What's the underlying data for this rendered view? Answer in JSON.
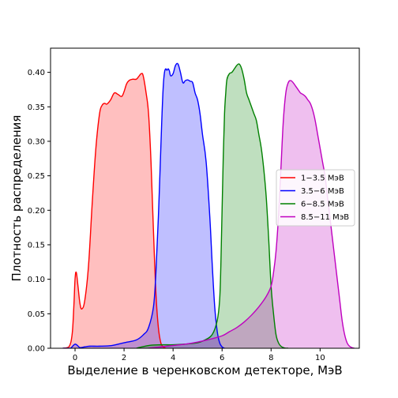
{
  "chart_data": {
    "type": "area",
    "xlabel": "Выделение в черенковском детекторе, МэВ",
    "ylabel": "Плотность распределения",
    "xlim": [
      -1.0,
      11.6
    ],
    "ylim": [
      0,
      0.435
    ],
    "xticks": [
      0,
      2,
      4,
      6,
      8,
      10
    ],
    "yticks": [
      0.0,
      0.05,
      0.1,
      0.15,
      0.2,
      0.25,
      0.3,
      0.35,
      0.4
    ],
    "ytick_labels": [
      "0.00",
      "0.05",
      "0.10",
      "0.15",
      "0.20",
      "0.25",
      "0.30",
      "0.35",
      "0.40"
    ],
    "grid": false,
    "legend_position": "center-right",
    "series": [
      {
        "name": "1−3.5 МэВ",
        "color": "#ff0000",
        "fill": "#ff0000",
        "x": [
          -0.5,
          -0.25,
          -0.12,
          -0.05,
          0,
          0.05,
          0.12,
          0.2,
          0.28,
          0.4,
          0.55,
          0.7,
          0.85,
          1.0,
          1.1,
          1.2,
          1.3,
          1.45,
          1.6,
          1.75,
          1.9,
          2.0,
          2.1,
          2.2,
          2.35,
          2.5,
          2.6,
          2.7,
          2.78,
          2.9,
          3.0,
          3.1,
          3.2,
          3.3,
          3.4,
          3.5,
          3.6,
          3.7
        ],
        "y": [
          0,
          0.002,
          0.02,
          0.06,
          0.1,
          0.11,
          0.09,
          0.065,
          0.057,
          0.07,
          0.12,
          0.21,
          0.29,
          0.34,
          0.352,
          0.355,
          0.354,
          0.36,
          0.37,
          0.368,
          0.365,
          0.372,
          0.383,
          0.388,
          0.39,
          0.39,
          0.394,
          0.398,
          0.395,
          0.37,
          0.34,
          0.27,
          0.17,
          0.08,
          0.03,
          0.008,
          0.002,
          0
        ]
      },
      {
        "name": "3.5−6 МэВ",
        "color": "#0000ff",
        "fill": "#0000ff",
        "x": [
          -0.5,
          -0.2,
          -0.1,
          0,
          0.1,
          0.2,
          0.4,
          0.6,
          1.0,
          1.5,
          2.0,
          2.5,
          2.8,
          3.0,
          3.2,
          3.3,
          3.4,
          3.5,
          3.55,
          3.6,
          3.65,
          3.7,
          3.75,
          3.8,
          3.85,
          3.9,
          4.0,
          4.1,
          4.2,
          4.3,
          4.4,
          4.5,
          4.6,
          4.7,
          4.8,
          4.9,
          5.0,
          5.1,
          5.2,
          5.35,
          5.5,
          5.6,
          5.7,
          5.8,
          5.9,
          6.0,
          6.1
        ],
        "y": [
          0,
          0.0,
          0.003,
          0.006,
          0.004,
          0.001,
          0.002,
          0.003,
          0.003,
          0.004,
          0.008,
          0.012,
          0.02,
          0.03,
          0.06,
          0.11,
          0.19,
          0.29,
          0.34,
          0.38,
          0.4,
          0.405,
          0.403,
          0.405,
          0.402,
          0.395,
          0.398,
          0.41,
          0.412,
          0.4,
          0.385,
          0.388,
          0.389,
          0.387,
          0.385,
          0.37,
          0.36,
          0.34,
          0.31,
          0.27,
          0.19,
          0.12,
          0.06,
          0.025,
          0.008,
          0.002,
          0
        ]
      },
      {
        "name": "6−8.5 МэВ",
        "color": "#008000",
        "fill": "#008000",
        "x": [
          2.5,
          3.0,
          3.5,
          4.0,
          4.5,
          5.0,
          5.3,
          5.6,
          5.8,
          5.9,
          5.95,
          6.0,
          6.05,
          6.1,
          6.15,
          6.2,
          6.3,
          6.4,
          6.5,
          6.6,
          6.7,
          6.8,
          6.9,
          7.0,
          7.1,
          7.2,
          7.3,
          7.4,
          7.5,
          7.6,
          7.7,
          7.8,
          7.9,
          8.0,
          8.1,
          8.2,
          8.3,
          8.4,
          8.5,
          8.6,
          8.7
        ],
        "y": [
          0,
          0.004,
          0.005,
          0.005,
          0.006,
          0.008,
          0.012,
          0.02,
          0.04,
          0.07,
          0.12,
          0.2,
          0.28,
          0.34,
          0.37,
          0.39,
          0.398,
          0.4,
          0.405,
          0.41,
          0.412,
          0.405,
          0.39,
          0.37,
          0.36,
          0.35,
          0.34,
          0.33,
          0.31,
          0.29,
          0.26,
          0.22,
          0.16,
          0.09,
          0.05,
          0.02,
          0.008,
          0.003,
          0.001,
          0.0,
          0
        ]
      },
      {
        "name": "8.5−11 МэВ",
        "color": "#bf00bf",
        "fill": "#bf00bf",
        "x": [
          3.0,
          3.5,
          4.0,
          4.5,
          5.0,
          5.5,
          6.0,
          6.3,
          6.6,
          6.9,
          7.2,
          7.5,
          7.8,
          8.0,
          8.1,
          8.2,
          8.3,
          8.4,
          8.5,
          8.6,
          8.7,
          8.8,
          8.9,
          9.0,
          9.1,
          9.2,
          9.3,
          9.4,
          9.5,
          9.6,
          9.7,
          9.8,
          9.9,
          10.0,
          10.1,
          10.2,
          10.3,
          10.4,
          10.5,
          10.6,
          10.7,
          10.8,
          10.9,
          11.0,
          11.1,
          11.2,
          11.3,
          11.4
        ],
        "y": [
          0,
          0.002,
          0.004,
          0.006,
          0.009,
          0.013,
          0.018,
          0.024,
          0.03,
          0.038,
          0.048,
          0.06,
          0.075,
          0.09,
          0.11,
          0.14,
          0.19,
          0.26,
          0.33,
          0.37,
          0.385,
          0.388,
          0.385,
          0.38,
          0.375,
          0.37,
          0.368,
          0.365,
          0.36,
          0.355,
          0.345,
          0.33,
          0.31,
          0.29,
          0.27,
          0.25,
          0.22,
          0.19,
          0.16,
          0.13,
          0.1,
          0.07,
          0.04,
          0.02,
          0.008,
          0.003,
          0.001,
          0
        ]
      }
    ]
  }
}
